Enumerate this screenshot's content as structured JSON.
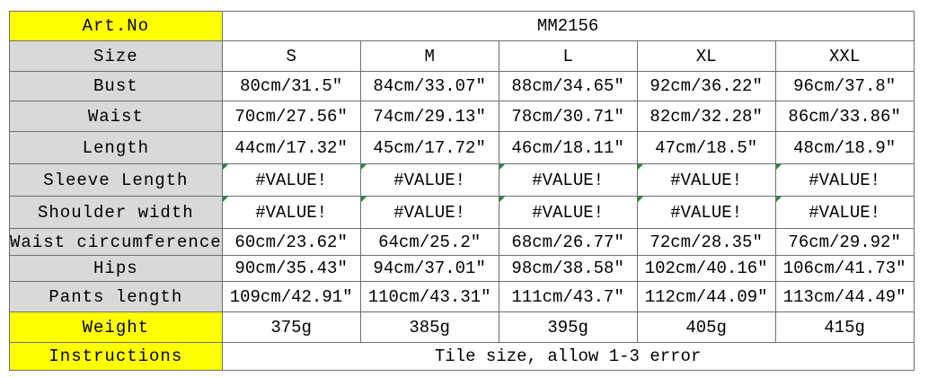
{
  "table": {
    "rows": [
      [
        "Art.No",
        "MM2156"
      ],
      [
        "Size",
        "S",
        "M",
        "L",
        "XL",
        "XXL"
      ],
      [
        "Bust",
        "80cm/31.5″",
        "84cm/33.07″",
        "88cm/34.65″",
        "92cm/36.22″",
        "96cm/37.8″"
      ],
      [
        "Waist",
        "70cm/27.56″",
        "74cm/29.13″",
        "78cm/30.71″",
        "82cm/32.28″",
        "86cm/33.86″"
      ],
      [
        "Length",
        "44cm/17.32″",
        "45cm/17.72″",
        "46cm/18.11″",
        "47cm/18.5″",
        "48cm/18.9″"
      ],
      [
        "Sleeve Length",
        "#VALUE!",
        "#VALUE!",
        "#VALUE!",
        "#VALUE!",
        "#VALUE!"
      ],
      [
        "Shoulder width",
        "#VALUE!",
        "#VALUE!",
        "#VALUE!",
        "#VALUE!",
        "#VALUE!"
      ],
      [
        "Waist circumference",
        "60cm/23.62″",
        "64cm/25.2″",
        "68cm/26.77″",
        "72cm/28.35″",
        "76cm/29.92″"
      ],
      [
        "Hips",
        "90cm/35.43″",
        "94cm/37.01″",
        "98cm/38.58″",
        "102cm/40.16″",
        "106cm/41.73″"
      ],
      [
        "Pants length",
        "109cm/42.91″",
        "110cm/43.31″",
        "111cm/43.7″",
        "112cm/44.09″",
        "113cm/44.49″"
      ],
      [
        "Weight",
        "375g",
        "385g",
        "395g",
        "405g",
        "415g"
      ],
      [
        "Instructions",
        "Tile size, allow 1-3 error"
      ]
    ]
  }
}
